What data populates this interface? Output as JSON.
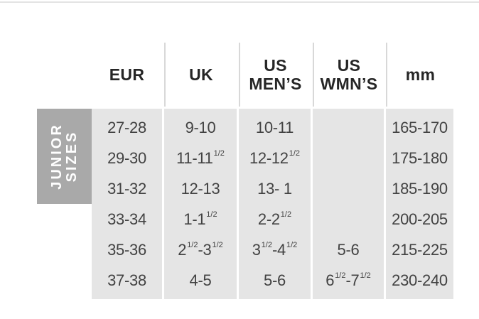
{
  "page": {
    "background": "#ffffff",
    "top_divider_color": "#e3e3e3"
  },
  "chart_data": {
    "type": "table",
    "row_group_label": "JUNIOR SIZES",
    "row_group_label_lines": [
      "JUNIOR",
      "SIZES"
    ],
    "columns": [
      "EUR",
      "UK",
      "US\nMEN’S",
      "US\nWMN’S",
      "mm"
    ],
    "fraction_note": "token ^1/2 renders as superscript 1/2",
    "rows": [
      [
        "27-28",
        "9-10",
        "10-11",
        "",
        "165-170"
      ],
      [
        "29-30",
        "11-11^1/2",
        "12-12^1/2",
        "",
        "175-180"
      ],
      [
        "31-32",
        "12-13",
        "13- 1",
        "",
        "185-190"
      ],
      [
        "33-34",
        "1-1^1/2",
        "2-2^1/2",
        "",
        "200-205"
      ],
      [
        "35-36",
        "2^1/2-3^1/2",
        "3^1/2-4^1/2",
        "5-6",
        "215-225"
      ],
      [
        "37-38",
        "4-5",
        "5-6",
        "6^1/2-7^1/2",
        "230-240"
      ]
    ],
    "colors": {
      "column_background": "#e5e5e5",
      "row_group_background": "#a9a9a9",
      "row_group_text": "#ffffff",
      "header_text": "#262626",
      "cell_text": "#424242",
      "separator_line": "#d8d8d8",
      "top_divider": "#e3e3e3"
    }
  }
}
